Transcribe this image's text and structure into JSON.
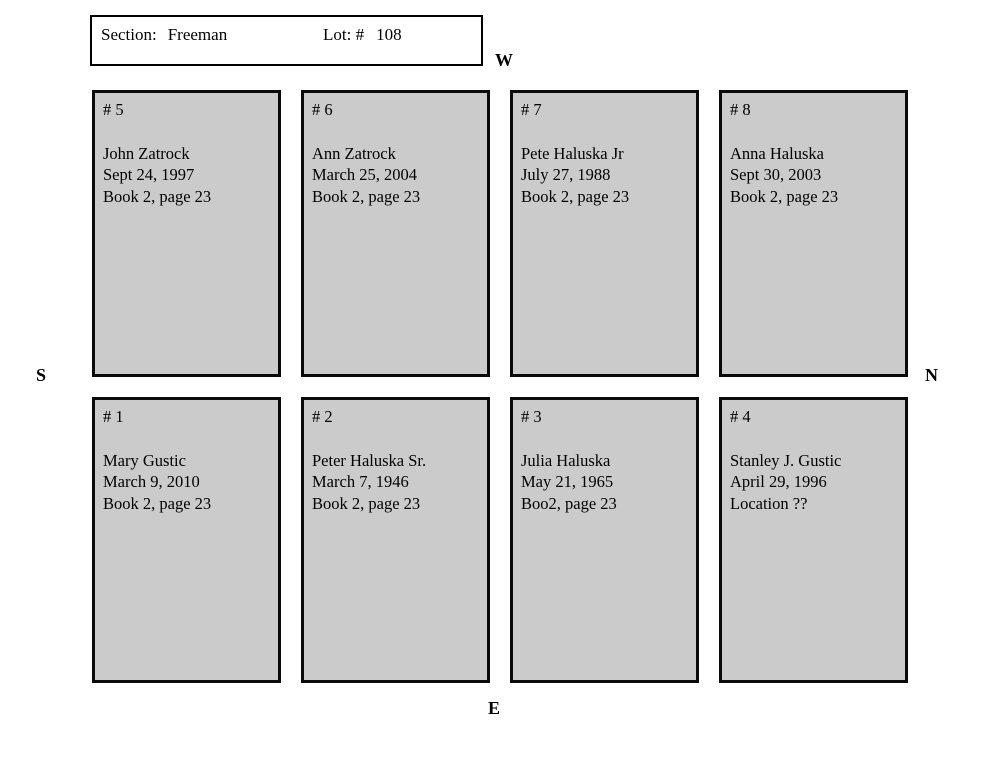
{
  "header": {
    "section_label": "Section:",
    "section_value": "Freeman",
    "lot_label": "Lot: #",
    "lot_value": "108"
  },
  "compass": {
    "west": "W",
    "south": "S",
    "north": "N",
    "east": "E"
  },
  "plots": [
    {
      "number": "# 5",
      "name": "John Zatrock",
      "date": "Sept 24, 1997",
      "record": "Book 2, page 23"
    },
    {
      "number": "# 6",
      "name": "Ann Zatrock",
      "date": "March 25, 2004",
      "record": "Book 2, page 23"
    },
    {
      "number": "# 7",
      "name": "Pete Haluska Jr",
      "date": "July 27, 1988",
      "record": "Book 2, page 23"
    },
    {
      "number": "# 8",
      "name": "Anna Haluska",
      "date": "Sept 30, 2003",
      "record": "Book 2, page 23"
    },
    {
      "number": "# 1",
      "name": "Mary Gustic",
      "date": "March 9, 2010",
      "record": "Book 2, page 23"
    },
    {
      "number": "# 2",
      "name": "Peter Haluska Sr.",
      "date": "March 7, 1946",
      "record": "Book 2, page 23"
    },
    {
      "number": "# 3",
      "name": "Julia Haluska",
      "date": "May 21, 1965",
      "record": "Boo2, page 23"
    },
    {
      "number": "# 4",
      "name": "Stanley J. Gustic",
      "date": "April 29, 1996",
      "record": "Location ??"
    }
  ],
  "colors": {
    "background": "#ffffff",
    "plot_fill": "#cbcbcb",
    "border": "#000000",
    "text": "#000000"
  }
}
